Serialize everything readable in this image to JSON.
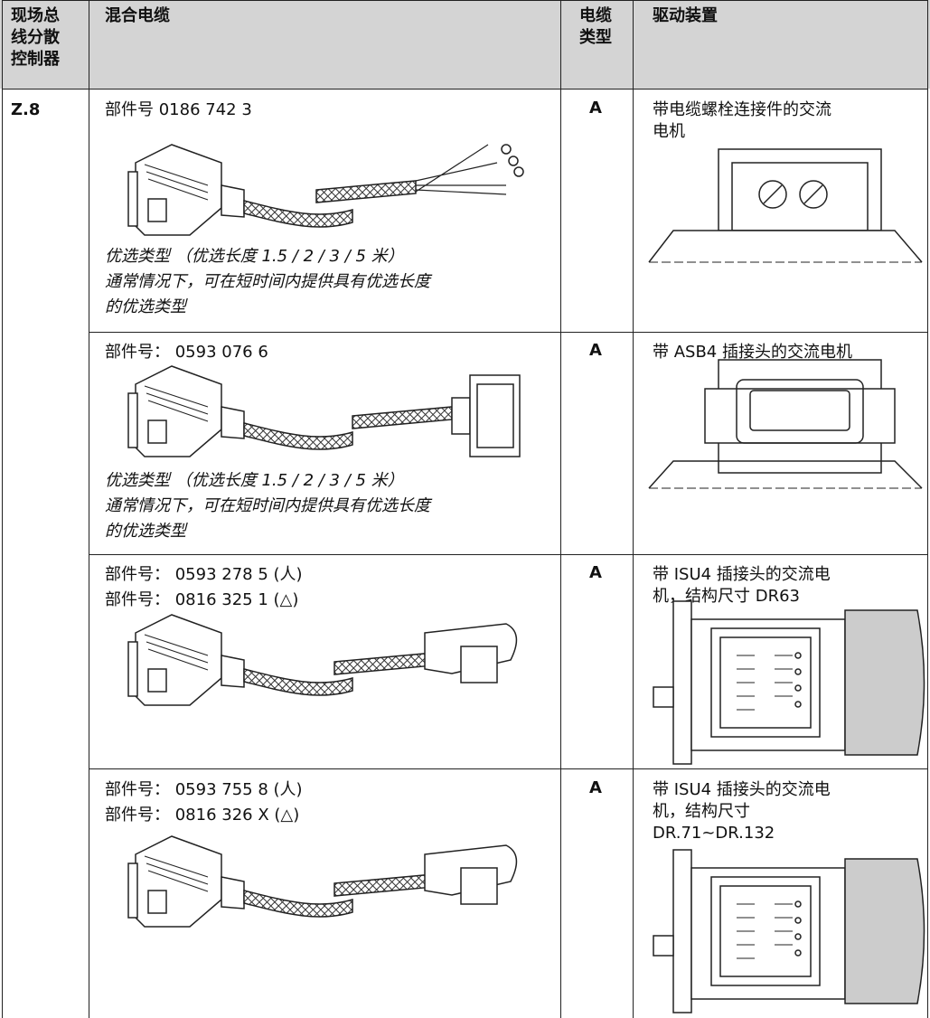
{
  "header": [
    [
      "现场总",
      "线分散",
      "控制器"
    ],
    [
      "混合电缆"
    ],
    [
      "电缆",
      "类型"
    ],
    [
      "驱动装置"
    ]
  ],
  "controller": "Z.8",
  "rows": [
    {
      "parts": [
        "部件号 0186 742 3"
      ],
      "notes": [
        "优选类型 （优选长度 1.5 / 2 / 3 / 5 米）",
        "通常情况下，可在短时间内提供具有优选长度",
        "的优选类型"
      ],
      "type": "A",
      "drive": [
        "带电缆螺栓连接件的交流",
        "电机"
      ]
    },
    {
      "parts": [
        "部件号： 0593 076 6"
      ],
      "notes": [
        "优选类型 （优选长度 1.5 / 2 / 3 / 5 米）",
        "通常情况下，可在短时间内提供具有优选长度",
        "的优选类型"
      ],
      "type": "A",
      "drive": [
        "带 ASB4 插接头的交流电机"
      ]
    },
    {
      "parts": [
        "部件号： 0593 278 5 (人)",
        "部件号： 0816 325 1 (△)"
      ],
      "type": "A",
      "drive": [
        "带 ISU4 插接头的交流电",
        "机，结构尺寸 DR63"
      ]
    },
    {
      "parts": [
        "部件号： 0593 755 8 (人)",
        "部件号： 0816 326 X (△)"
      ],
      "type": "A",
      "drive": [
        "带 ISU4 插接头的交流电",
        "机，结构尺寸",
        "DR.71~DR.132"
      ]
    }
  ]
}
